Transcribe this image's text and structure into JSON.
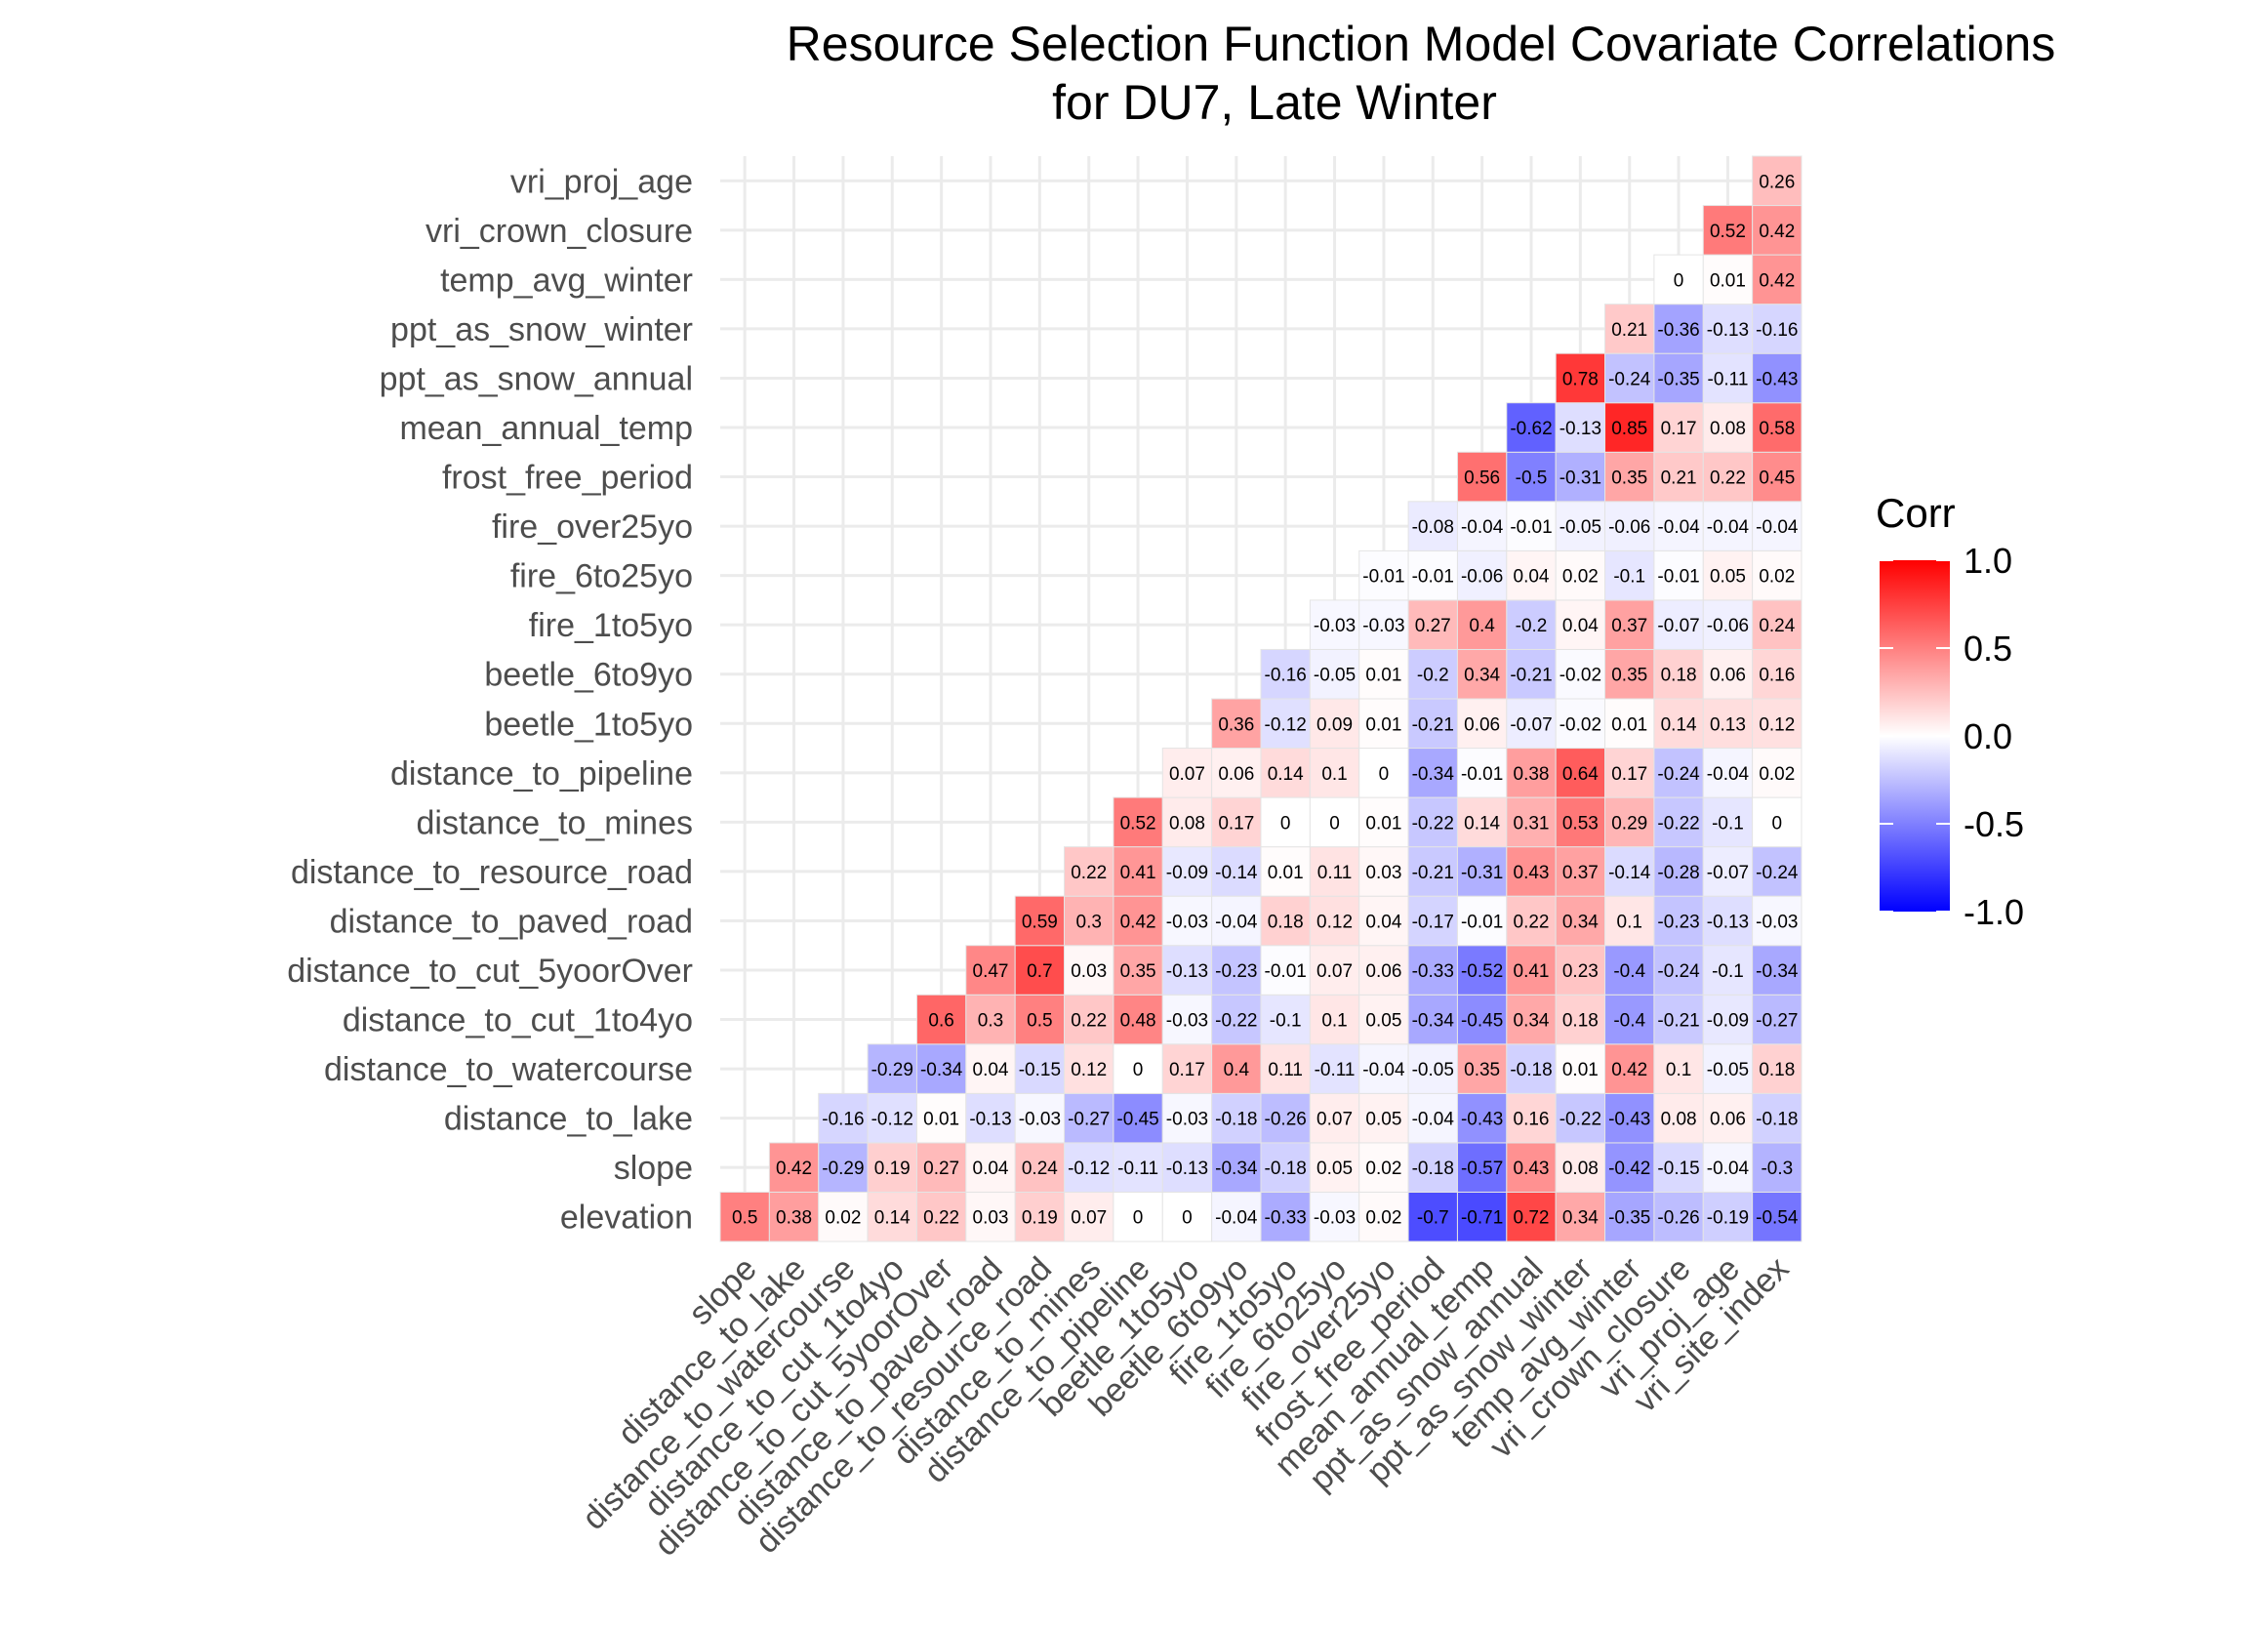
{
  "chart_data": {
    "type": "heatmap",
    "title": [
      "Resource Selection Function Model Covariate Correlations",
      "for DU7, Late Winter"
    ],
    "x_categories": [
      "slope",
      "distance_to_lake",
      "distance_to_watercourse",
      "distance_to_cut_1to4yo",
      "distance_to_cut_5yoorOver",
      "distance_to_paved_road",
      "distance_to_resource_road",
      "distance_to_mines",
      "distance_to_pipeline",
      "beetle_1to5yo",
      "beetle_6to9yo",
      "fire_1to5yo",
      "fire_6to25yo",
      "fire_over25yo",
      "frost_free_period",
      "mean_annual_temp",
      "ppt_as_snow_annual",
      "ppt_as_snow_winter",
      "temp_avg_winter",
      "vri_crown_closure",
      "vri_proj_age",
      "vri_site_index"
    ],
    "y_categories": [
      "elevation",
      "slope",
      "distance_to_lake",
      "distance_to_watercourse",
      "distance_to_cut_1to4yo",
      "distance_to_cut_5yoorOver",
      "distance_to_paved_road",
      "distance_to_resource_road",
      "distance_to_mines",
      "distance_to_pipeline",
      "beetle_1to5yo",
      "beetle_6to9yo",
      "fire_1to5yo",
      "fire_6to25yo",
      "fire_over25yo",
      "frost_free_period",
      "mean_annual_temp",
      "ppt_as_snow_annual",
      "ppt_as_snow_winter",
      "temp_avg_winter",
      "vri_crown_closure",
      "vri_proj_age"
    ],
    "values": [
      [
        0.5,
        0.38,
        0.02,
        0.14,
        0.22,
        0.03,
        0.19,
        0.07,
        0,
        0,
        -0.04,
        -0.33,
        -0.03,
        0.02,
        -0.7,
        -0.71,
        0.72,
        0.34,
        -0.35,
        -0.26,
        -0.19,
        -0.54
      ],
      [
        0.42,
        -0.29,
        0.19,
        0.27,
        0.04,
        0.24,
        -0.12,
        -0.11,
        -0.13,
        -0.34,
        -0.18,
        0.05,
        0.02,
        -0.18,
        -0.57,
        0.43,
        0.08,
        -0.42,
        -0.15,
        -0.04,
        -0.3
      ],
      [
        -0.16,
        -0.12,
        0.01,
        -0.13,
        -0.03,
        -0.27,
        -0.45,
        -0.03,
        -0.18,
        -0.26,
        0.07,
        0.05,
        -0.04,
        -0.43,
        0.16,
        -0.22,
        -0.43,
        0.08,
        0.06,
        -0.18
      ],
      [
        -0.29,
        -0.34,
        0.04,
        -0.15,
        0.12,
        0,
        0.17,
        0.4,
        0.11,
        -0.11,
        -0.04,
        -0.05,
        0.35,
        -0.18,
        0.01,
        0.42,
        0.1,
        -0.05,
        0.18
      ],
      [
        0.6,
        0.3,
        0.5,
        0.22,
        0.48,
        -0.03,
        -0.22,
        -0.1,
        0.1,
        0.05,
        -0.34,
        -0.45,
        0.34,
        0.18,
        -0.4,
        -0.21,
        -0.09,
        -0.27
      ],
      [
        0.47,
        0.7,
        0.03,
        0.35,
        -0.13,
        -0.23,
        -0.01,
        0.07,
        0.06,
        -0.33,
        -0.52,
        0.41,
        0.23,
        -0.4,
        -0.24,
        -0.1,
        -0.34
      ],
      [
        0.59,
        0.3,
        0.42,
        -0.03,
        -0.04,
        0.18,
        0.12,
        0.04,
        -0.17,
        -0.01,
        0.22,
        0.34,
        0.1,
        -0.23,
        -0.13,
        -0.03
      ],
      [
        0.22,
        0.41,
        -0.09,
        -0.14,
        0.01,
        0.11,
        0.03,
        -0.21,
        -0.31,
        0.43,
        0.37,
        -0.14,
        -0.28,
        -0.07,
        -0.24
      ],
      [
        0.52,
        0.08,
        0.17,
        0,
        0,
        0.01,
        -0.22,
        0.14,
        0.31,
        0.53,
        0.29,
        -0.22,
        -0.1,
        0
      ],
      [
        0.07,
        0.06,
        0.14,
        0.1,
        0,
        -0.34,
        -0.01,
        0.38,
        0.64,
        0.17,
        -0.24,
        -0.04,
        0.02
      ],
      [
        0.36,
        -0.12,
        0.09,
        0.01,
        -0.21,
        0.06,
        -0.07,
        -0.02,
        0.01,
        0.14,
        0.13,
        0.12
      ],
      [
        -0.16,
        -0.05,
        0.01,
        -0.2,
        0.34,
        -0.21,
        -0.02,
        0.35,
        0.18,
        0.06,
        0.16
      ],
      [
        -0.03,
        -0.03,
        0.27,
        0.4,
        -0.2,
        0.04,
        0.37,
        -0.07,
        -0.06,
        0.24
      ],
      [
        -0.01,
        -0.01,
        -0.06,
        0.04,
        0.02,
        -0.1,
        -0.01,
        0.05,
        0.02
      ],
      [
        -0.08,
        -0.04,
        -0.01,
        -0.05,
        -0.06,
        -0.04,
        -0.04,
        -0.04
      ],
      [
        0.56,
        -0.5,
        -0.31,
        0.35,
        0.21,
        0.22,
        0.45
      ],
      [
        -0.62,
        -0.13,
        0.85,
        0.17,
        0.08,
        0.58
      ],
      [
        0.78,
        -0.24,
        -0.35,
        -0.11,
        -0.43
      ],
      [
        0.21,
        -0.36,
        -0.13,
        -0.16
      ],
      [
        0,
        0.01,
        0.42
      ],
      [
        0.52,
        0.42
      ],
      [
        0.26
      ]
    ],
    "legend": {
      "title": "Corr",
      "ticks": [
        "1.0",
        "0.5",
        "0.0",
        "-0.5",
        "-1.0"
      ],
      "range": [
        -1,
        1
      ],
      "low_color": "#0000FF",
      "mid_color": "#FFFFFF",
      "high_color": "#FF0000",
      "placement": "right"
    },
    "grid": true
  }
}
